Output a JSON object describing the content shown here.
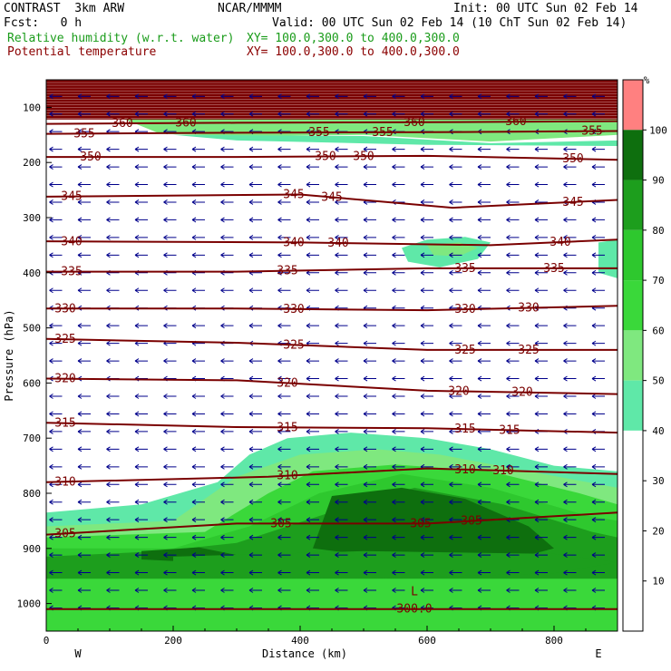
{
  "header": {
    "model": "CONTRAST  3km ARW",
    "org": "NCAR/MMMM",
    "init": "Init: 00 UTC Sun 02 Feb 14",
    "fcst": "Fcst:   0 h",
    "valid": "Valid: 00 UTC Sun 02 Feb 14 (10 ChT Sun 02 Feb 14)",
    "rh_label": "Relative humidity (w.r.t. water)",
    "rh_xy": "XY= 100.0,300.0 to 400.0,300.0",
    "theta_label": "Potential temperature",
    "theta_xy": "XY= 100.0,300.0 to 400.0,300.0"
  },
  "colors": {
    "rh_50": "#5fe8a8",
    "rh_60": "#7fe87f",
    "rh_70": "#3ad83a",
    "rh_80": "#2ec82e",
    "rh_90": "#1d9e1d",
    "rh_100": "#0e6f0e",
    "top_band": "#7a0000",
    "theta": "#7a0000",
    "wind": "#00008b",
    "colorbar_top": "#ff8080"
  },
  "chart_data": {
    "type": "cross-section",
    "xlabel": "Distance (km)",
    "ylabel": "Pressure (hPa)",
    "x_ticks": [
      "0",
      "200",
      "400",
      "600",
      "800"
    ],
    "y_ticks": [
      "100",
      "200",
      "300",
      "400",
      "500",
      "600",
      "700",
      "800",
      "900",
      "1000"
    ],
    "x_range": [
      0,
      900
    ],
    "y_range": [
      50,
      1050
    ],
    "left_end": "W",
    "right_end": "E",
    "colorbar": {
      "unit": "%",
      "labels": [
        "100",
        "90",
        "80",
        "70",
        "60",
        "50",
        "40",
        "30",
        "20",
        "10"
      ],
      "levels": [
        100,
        90,
        80,
        70,
        60,
        50,
        40,
        30,
        20,
        10,
        0
      ]
    },
    "theta_lines": [
      {
        "value": 360,
        "points": [
          [
            0,
            130
          ],
          [
            300,
            128
          ],
          [
            600,
            127
          ],
          [
            900,
            125
          ]
        ],
        "labels": [
          [
            120,
            "360"
          ],
          [
            220,
            "360"
          ],
          [
            580,
            "360"
          ],
          [
            740,
            "360"
          ]
        ]
      },
      {
        "value": 355,
        "points": [
          [
            0,
            148
          ],
          [
            300,
            146
          ],
          [
            600,
            145
          ],
          [
            900,
            143
          ]
        ],
        "labels": [
          [
            60,
            "355"
          ],
          [
            430,
            "355"
          ],
          [
            530,
            "355"
          ],
          [
            860,
            "355"
          ]
        ]
      },
      {
        "value": 350,
        "points": [
          [
            0,
            190
          ],
          [
            300,
            190
          ],
          [
            600,
            188
          ],
          [
            900,
            195
          ]
        ],
        "labels": [
          [
            70,
            "350"
          ],
          [
            440,
            "350"
          ],
          [
            500,
            "350"
          ],
          [
            830,
            "350"
          ]
        ]
      },
      {
        "value": 345,
        "points": [
          [
            0,
            262
          ],
          [
            400,
            258
          ],
          [
            640,
            282
          ],
          [
            900,
            268
          ]
        ],
        "labels": [
          [
            40,
            "345"
          ],
          [
            390,
            "345"
          ],
          [
            450,
            "345"
          ],
          [
            830,
            "345"
          ]
        ]
      },
      {
        "value": 340,
        "points": [
          [
            0,
            343
          ],
          [
            400,
            345
          ],
          [
            700,
            350
          ],
          [
            900,
            340
          ]
        ],
        "labels": [
          [
            40,
            "340"
          ],
          [
            390,
            "340"
          ],
          [
            460,
            "340"
          ],
          [
            810,
            "340"
          ]
        ]
      },
      {
        "value": 335,
        "points": [
          [
            0,
            398
          ],
          [
            300,
            398
          ],
          [
            600,
            392
          ],
          [
            900,
            392
          ]
        ],
        "labels": [
          [
            40,
            "335"
          ],
          [
            380,
            "335"
          ],
          [
            660,
            "335"
          ],
          [
            800,
            "335"
          ]
        ]
      },
      {
        "value": 330,
        "points": [
          [
            0,
            465
          ],
          [
            300,
            465
          ],
          [
            600,
            468
          ],
          [
            900,
            460
          ]
        ],
        "labels": [
          [
            30,
            "330"
          ],
          [
            390,
            "330"
          ],
          [
            660,
            "330"
          ],
          [
            760,
            "330"
          ]
        ]
      },
      {
        "value": 325,
        "points": [
          [
            0,
            520
          ],
          [
            300,
            527
          ],
          [
            600,
            540
          ],
          [
            900,
            540
          ]
        ],
        "labels": [
          [
            30,
            "325"
          ],
          [
            390,
            "325"
          ],
          [
            660,
            "325"
          ],
          [
            760,
            "325"
          ]
        ]
      },
      {
        "value": 320,
        "points": [
          [
            0,
            592
          ],
          [
            300,
            595
          ],
          [
            600,
            614
          ],
          [
            900,
            620
          ]
        ],
        "labels": [
          [
            30,
            "320"
          ],
          [
            380,
            "320"
          ],
          [
            650,
            "320"
          ],
          [
            750,
            "320"
          ]
        ]
      },
      {
        "value": 315,
        "points": [
          [
            0,
            672
          ],
          [
            300,
            680
          ],
          [
            600,
            682
          ],
          [
            900,
            690
          ]
        ],
        "labels": [
          [
            30,
            "315"
          ],
          [
            380,
            "315"
          ],
          [
            660,
            "315"
          ],
          [
            730,
            "315"
          ]
        ]
      },
      {
        "value": 310,
        "points": [
          [
            0,
            780
          ],
          [
            350,
            770
          ],
          [
            600,
            755
          ],
          [
            900,
            765
          ]
        ],
        "labels": [
          [
            30,
            "310"
          ],
          [
            380,
            "310"
          ],
          [
            660,
            "310"
          ],
          [
            720,
            "310"
          ]
        ]
      },
      {
        "value": 305,
        "points": [
          [
            0,
            875
          ],
          [
            300,
            855
          ],
          [
            600,
            855
          ],
          [
            900,
            835
          ]
        ],
        "labels": [
          [
            30,
            "305"
          ],
          [
            370,
            "305"
          ],
          [
            590,
            "305"
          ],
          [
            670,
            "305"
          ]
        ]
      },
      {
        "value": 300,
        "points": [
          [
            0,
            1010
          ],
          [
            900,
            1010
          ]
        ],
        "labels": [
          [
            580,
            "300.0"
          ]
        ]
      }
    ],
    "markers": [
      {
        "x": 580,
        "p": 985,
        "text": "L"
      }
    ],
    "wind_arrows": "westward (pointing left) across the entire section"
  }
}
